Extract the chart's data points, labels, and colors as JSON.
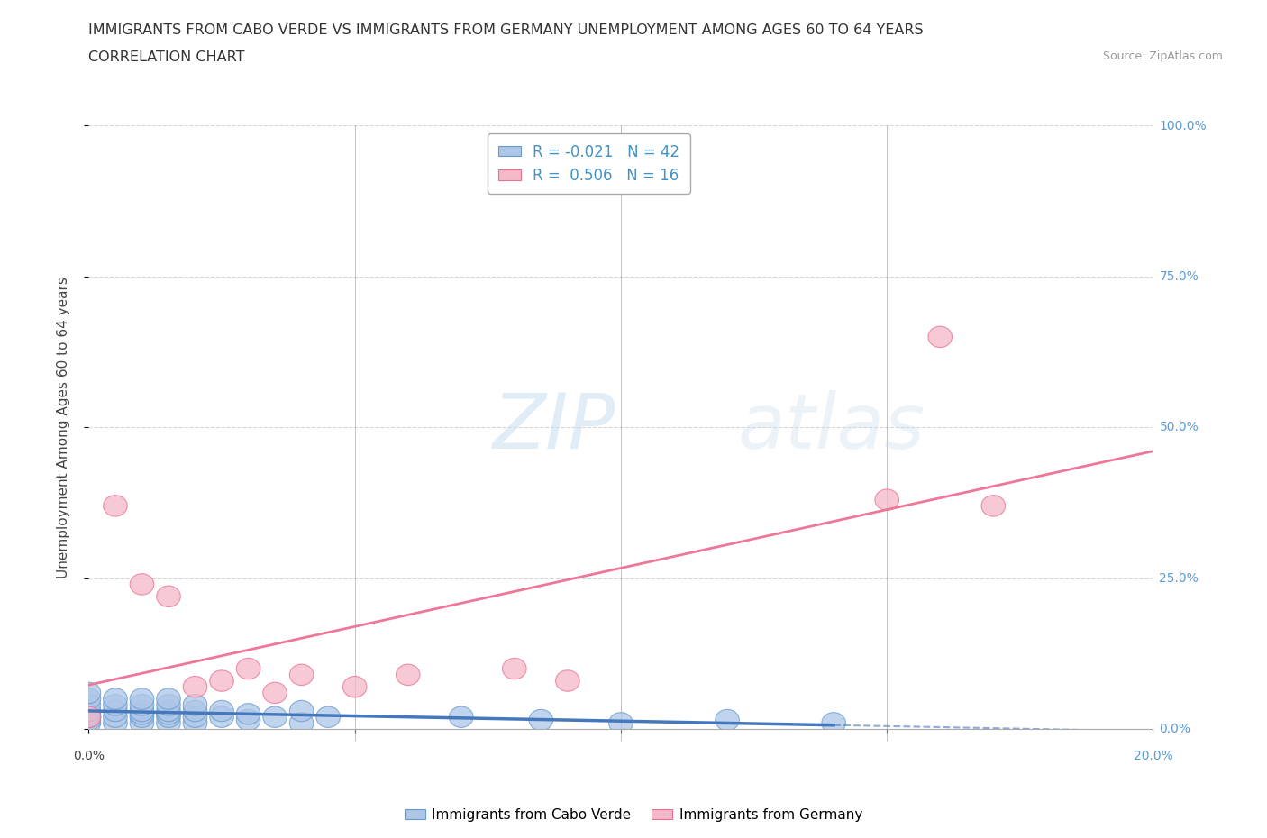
{
  "title_line1": "IMMIGRANTS FROM CABO VERDE VS IMMIGRANTS FROM GERMANY UNEMPLOYMENT AMONG AGES 60 TO 64 YEARS",
  "title_line2": "CORRELATION CHART",
  "source_text": "Source: ZipAtlas.com",
  "ylabel": "Unemployment Among Ages 60 to 64 years",
  "legend_label1": "Immigrants from Cabo Verde",
  "legend_label2": "Immigrants from Germany",
  "r1": -0.021,
  "n1": 42,
  "r2": 0.506,
  "n2": 16,
  "color_blue_fill": "#adc6e8",
  "color_pink_fill": "#f5b8c8",
  "color_blue_edge": "#6699cc",
  "color_pink_edge": "#e87090",
  "color_blue_line": "#4477bb",
  "color_pink_line": "#ee7799",
  "cabo_verde_x": [
    0.0,
    0.0,
    0.0,
    0.0,
    0.0,
    0.0,
    0.0,
    0.0,
    0.5,
    0.5,
    0.5,
    0.5,
    0.5,
    1.0,
    1.0,
    1.0,
    1.0,
    1.0,
    1.0,
    1.5,
    1.5,
    1.5,
    1.5,
    1.5,
    1.5,
    2.0,
    2.0,
    2.0,
    2.0,
    2.5,
    2.5,
    3.0,
    3.0,
    3.5,
    4.0,
    4.0,
    4.5,
    7.0,
    8.5,
    10.0,
    12.0,
    14.0
  ],
  "cabo_verde_y": [
    1.0,
    1.5,
    2.0,
    2.5,
    3.0,
    4.0,
    5.0,
    6.0,
    1.0,
    2.0,
    3.0,
    4.0,
    5.0,
    1.0,
    2.0,
    2.5,
    3.0,
    4.0,
    5.0,
    1.0,
    2.0,
    2.5,
    3.0,
    4.0,
    5.0,
    1.0,
    2.0,
    3.0,
    4.0,
    2.0,
    3.0,
    1.5,
    2.5,
    2.0,
    1.0,
    3.0,
    2.0,
    2.0,
    1.5,
    1.0,
    1.5,
    1.0
  ],
  "germany_x": [
    0.0,
    0.5,
    1.0,
    1.5,
    2.0,
    2.5,
    3.0,
    3.5,
    4.0,
    5.0,
    6.0,
    8.0,
    9.0,
    15.0,
    16.0,
    17.0
  ],
  "germany_y": [
    2.0,
    37.0,
    24.0,
    22.0,
    7.0,
    8.0,
    10.0,
    6.0,
    9.0,
    7.0,
    9.0,
    10.0,
    8.0,
    38.0,
    65.0,
    37.0
  ],
  "watermark_top": "ZIP",
  "watermark_bot": "atlas",
  "background_color": "#ffffff",
  "grid_color": "#cccccc",
  "xlim": [
    0,
    20
  ],
  "ylim": [
    0,
    100
  ],
  "y_ticks": [
    0,
    25,
    50,
    75,
    100
  ],
  "y_right_labels": [
    "0.0%",
    "25.0%",
    "50.0%",
    "75.0%",
    "100.0%"
  ],
  "x_left_label": "0.0%",
  "x_right_label": "20.0%"
}
